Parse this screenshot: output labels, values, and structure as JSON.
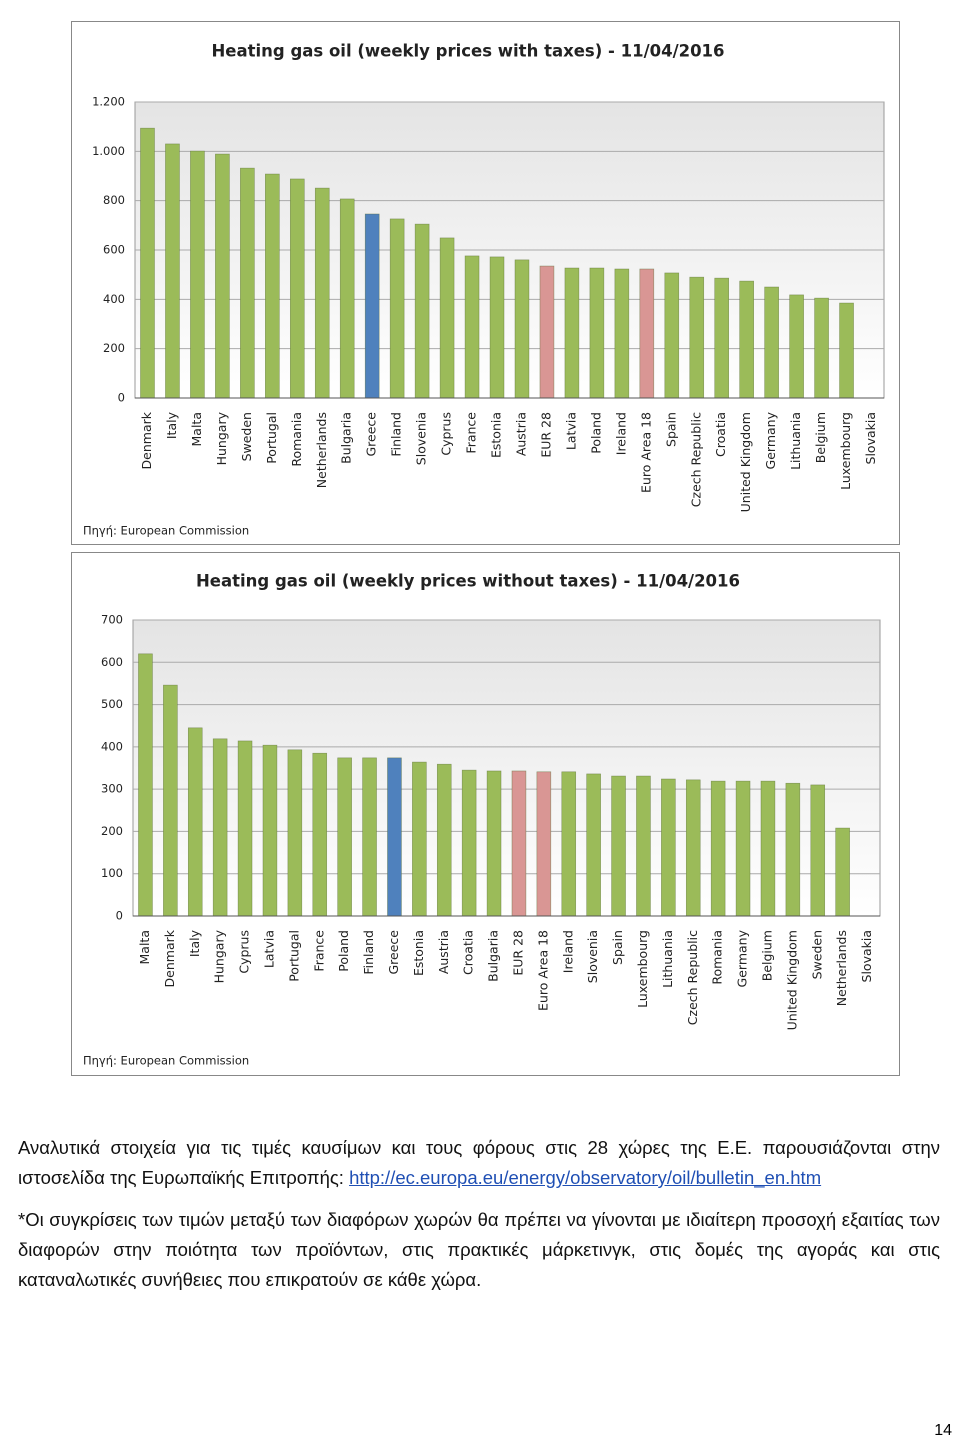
{
  "chart_data": [
    {
      "type": "bar",
      "title": "Heating gas oil (weekly prices with taxes) - 11/04/2016",
      "source": "Πηγή: European Commission",
      "categories": [
        "Denmark",
        "Italy",
        "Malta",
        "Hungary",
        "Sweden",
        "Portugal",
        "Romania",
        "Netherlands",
        "Bulgaria",
        "Greece",
        "Finland",
        "Slovenia",
        "Cyprus",
        "France",
        "Estonia",
        "Austria",
        "EUR 28",
        "Latvia",
        "Poland",
        "Ireland",
        "Euro Area 18",
        "Spain",
        "Czech Republic",
        "Croatia",
        "United Kingdom",
        "Germany",
        "Lithuania",
        "Belgium",
        "Luxembourg",
        "Slovakia"
      ],
      "values": [
        1094,
        1030,
        1001,
        989,
        932,
        908,
        888,
        851,
        807,
        746,
        726,
        705,
        649,
        576,
        572,
        560,
        535,
        527,
        527,
        523,
        523,
        507,
        490,
        486,
        474,
        450,
        418,
        405,
        385,
        0
      ],
      "colors": [
        "#9bbb59",
        "#9bbb59",
        "#9bbb59",
        "#9bbb59",
        "#9bbb59",
        "#9bbb59",
        "#9bbb59",
        "#9bbb59",
        "#9bbb59",
        "#4f81bd",
        "#9bbb59",
        "#9bbb59",
        "#9bbb59",
        "#9bbb59",
        "#9bbb59",
        "#9bbb59",
        "#d99694",
        "#9bbb59",
        "#9bbb59",
        "#9bbb59",
        "#d99694",
        "#9bbb59",
        "#9bbb59",
        "#9bbb59",
        "#9bbb59",
        "#9bbb59",
        "#9bbb59",
        "#9bbb59",
        "#9bbb59",
        "#9bbb59"
      ],
      "ylim": [
        0,
        1200
      ],
      "yticks": [
        0,
        200,
        400,
        600,
        800,
        {
          "value": 1000,
          "label": "1.000"
        },
        {
          "value": 1200,
          "label": "1.200"
        }
      ],
      "grid": true
    },
    {
      "type": "bar",
      "title": "Heating gas oil (weekly prices without taxes) - 11/04/2016",
      "source": "Πηγή: European Commission",
      "categories": [
        "Malta",
        "Denmark",
        "Italy",
        "Hungary",
        "Cyprus",
        "Latvia",
        "Portugal",
        "France",
        "Poland",
        "Finland",
        "Greece",
        "Estonia",
        "Austria",
        "Croatia",
        "Bulgaria",
        "EUR 28",
        "Euro Area 18",
        "Ireland",
        "Slovenia",
        "Spain",
        "Luxembourg",
        "Lithuania",
        "Czech Republic",
        "Romania",
        "Germany",
        "Belgium",
        "United Kingdom",
        "Sweden",
        "Netherlands",
        "Slovakia"
      ],
      "values": [
        620,
        546,
        445,
        419,
        414,
        404,
        393,
        385,
        374,
        374,
        374,
        364,
        359,
        345,
        343,
        343,
        341,
        341,
        336,
        331,
        331,
        324,
        322,
        319,
        319,
        319,
        314,
        310,
        208,
        0
      ],
      "colors": [
        "#9bbb59",
        "#9bbb59",
        "#9bbb59",
        "#9bbb59",
        "#9bbb59",
        "#9bbb59",
        "#9bbb59",
        "#9bbb59",
        "#9bbb59",
        "#9bbb59",
        "#4f81bd",
        "#9bbb59",
        "#9bbb59",
        "#9bbb59",
        "#9bbb59",
        "#d99694",
        "#d99694",
        "#9bbb59",
        "#9bbb59",
        "#9bbb59",
        "#9bbb59",
        "#9bbb59",
        "#9bbb59",
        "#9bbb59",
        "#9bbb59",
        "#9bbb59",
        "#9bbb59",
        "#9bbb59",
        "#9bbb59",
        "#9bbb59"
      ],
      "ylim": [
        0,
        700
      ],
      "yticks": [
        0,
        100,
        200,
        300,
        400,
        500,
        600,
        700
      ],
      "grid": true
    }
  ],
  "text": {
    "paragraph1": "Αναλυτικά στοιχεία για τις τιμές καυσίμων και τους φόρους στις 28 χώρες της Ε.Ε. παρουσιάζονται στην ιστοσελίδα της Ευρωπαϊκής Επιτροπής: ",
    "link": "http://ec.europa.eu/energy/observatory/oil/bulletin_en.htm",
    "paragraph2": "*Οι συγκρίσεις των τιμών μεταξύ των διαφόρων χωρών θα πρέπει να γίνονται με ιδιαίτερη προσοχή εξαιτίας των διαφορών στην ποιότητα των προϊόντων, στις πρακτικές μάρκετινγκ, στις δομές της αγοράς και στις καταναλωτικές συνήθειες που επικρατούν σε κάθε χώρα.",
    "page_number": "14"
  }
}
